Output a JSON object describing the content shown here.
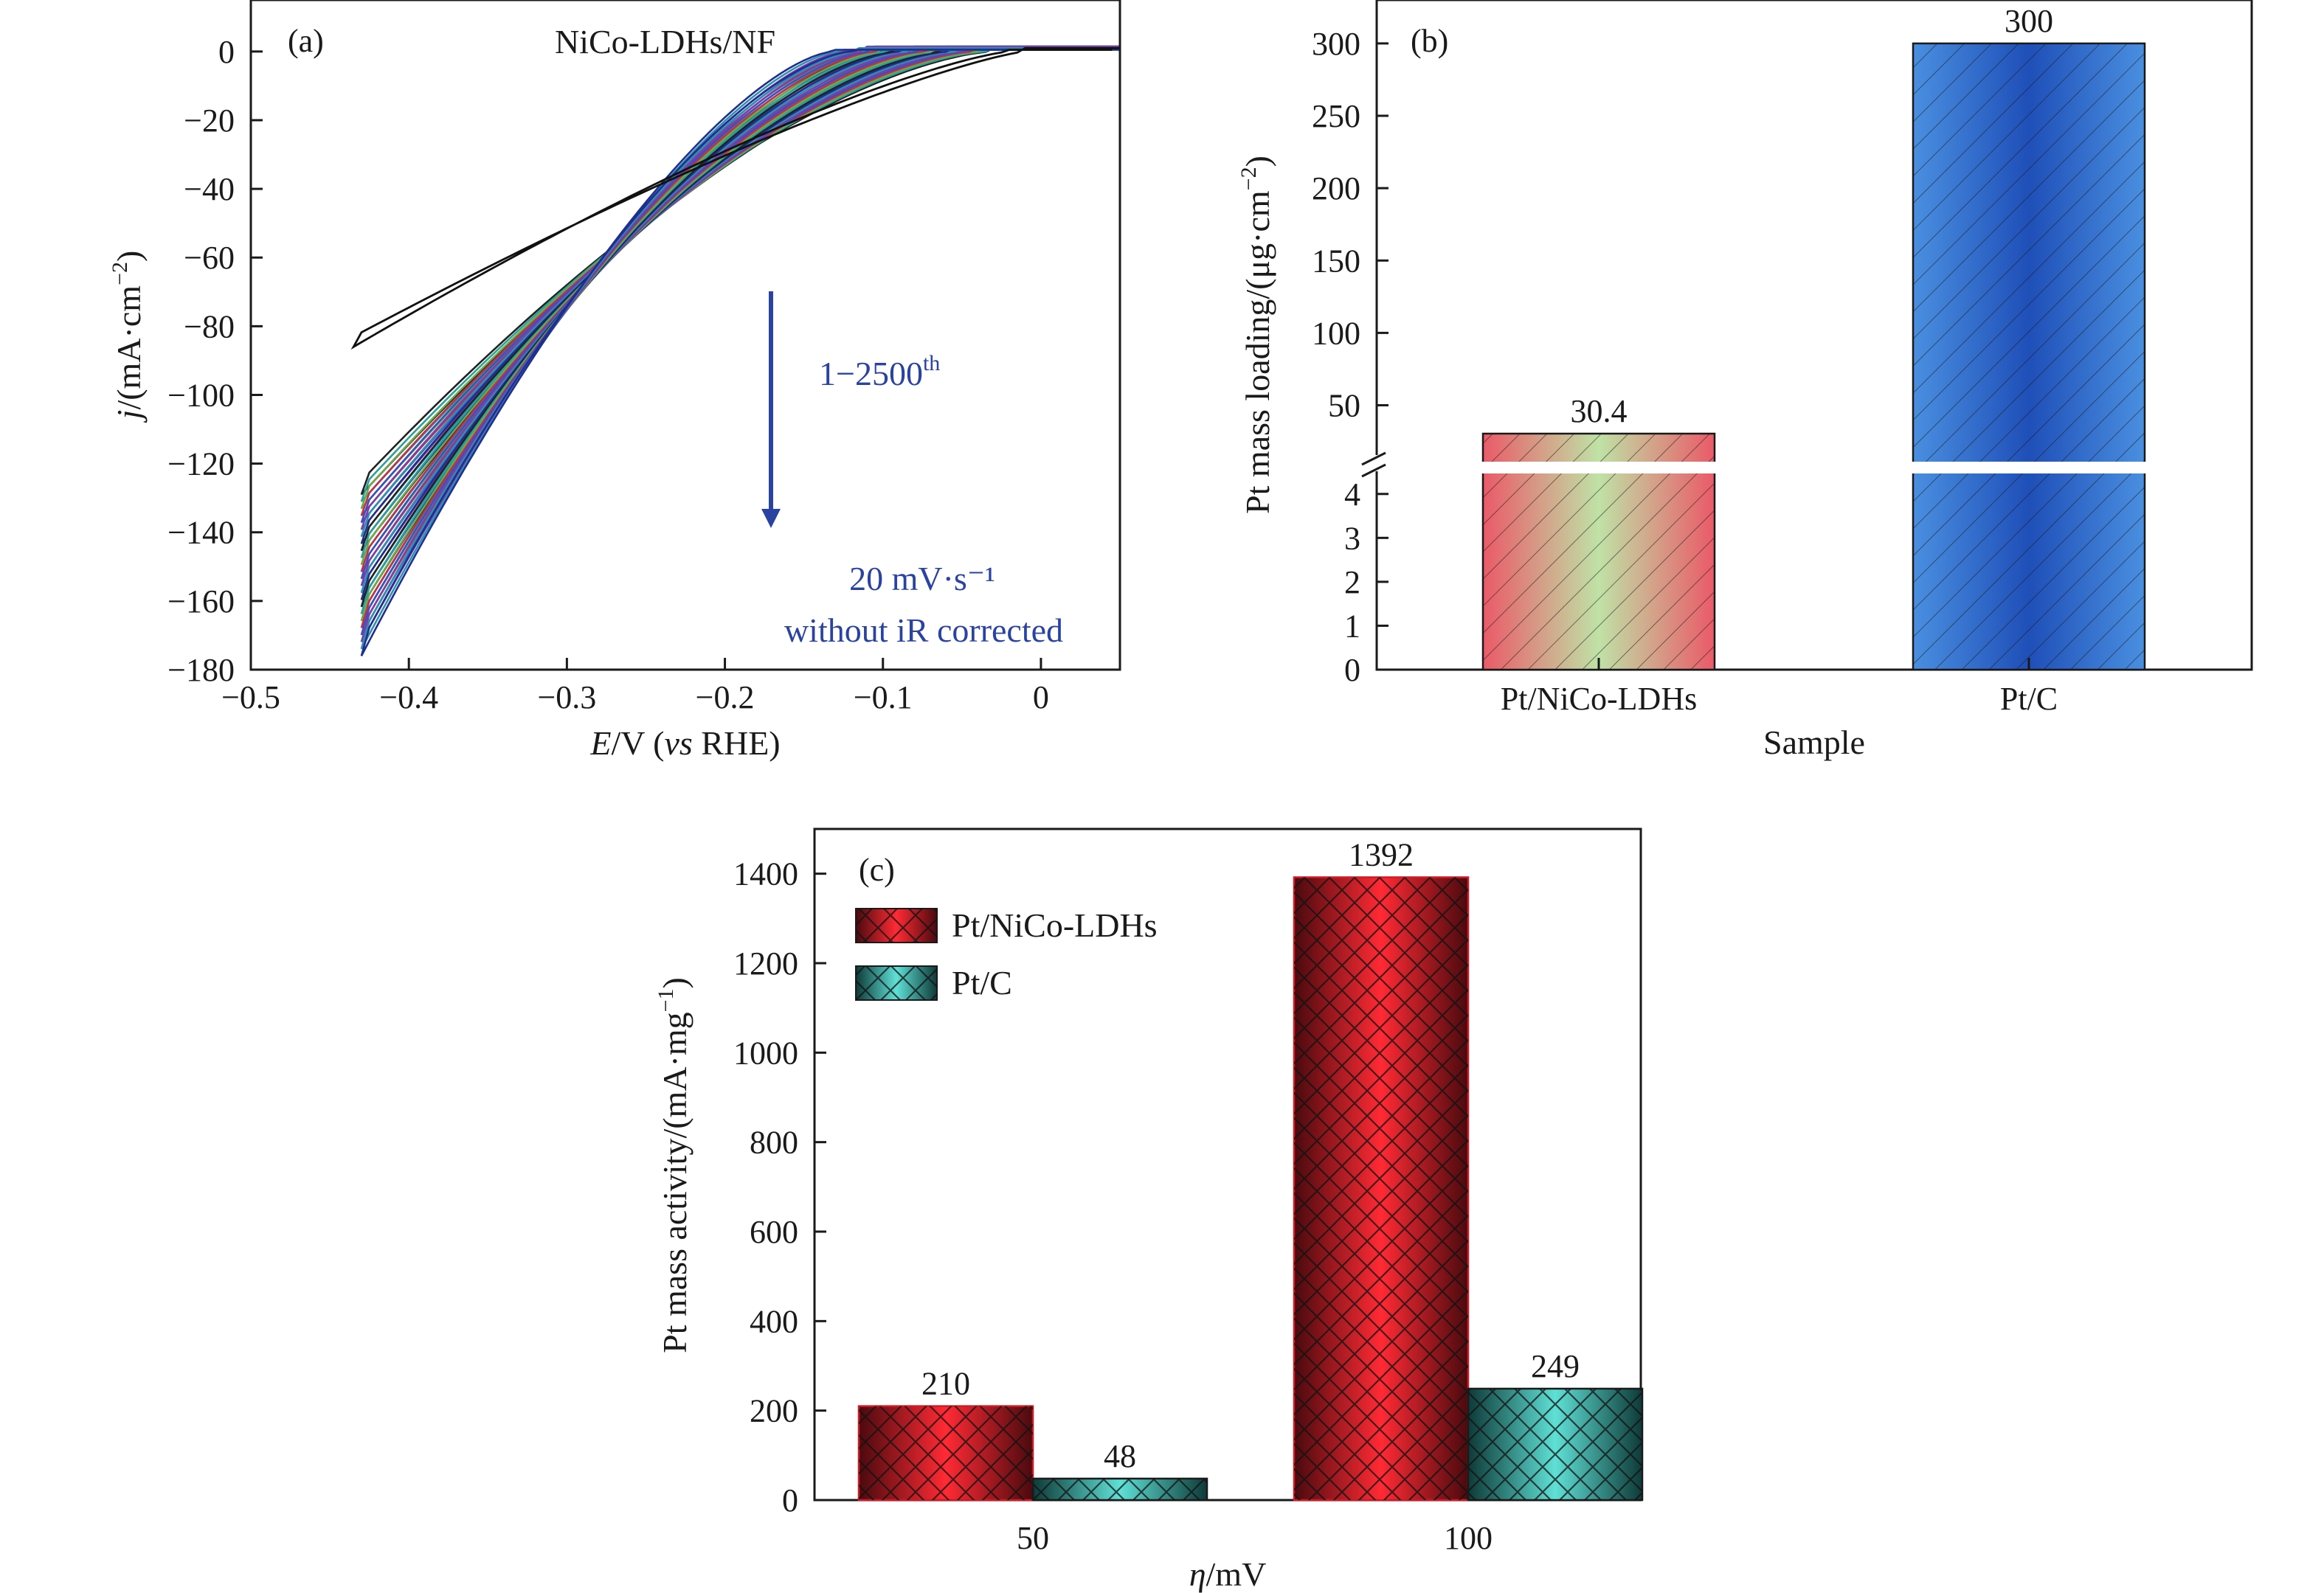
{
  "chart_data": [
    {
      "panel": "(a)",
      "type": "line",
      "title": "NiCo-LDHs/NF",
      "xlabel": "E/V (vs RHE)",
      "ylabel": "j/(mA·cm⁻²)",
      "xlim": [
        -0.5,
        0.05
      ],
      "ylim": [
        -180,
        15
      ],
      "xticks": [
        "−0.5",
        "−0.4",
        "−0.3",
        "−0.2",
        "−0.1",
        "0"
      ],
      "yticks": [
        "0",
        "−20",
        "−40",
        "−60",
        "−80",
        "−100",
        "−120",
        "−140",
        "−160",
        "−180"
      ],
      "annotations": {
        "cycles": "1−2500",
        "cycles_sup": "th",
        "scan_rate": "20 mV·s⁻¹",
        "note": "without iR corrected"
      },
      "series_style": {
        "colors": [
          "#222222",
          "#2ba09a",
          "#6fa84a",
          "#c0304a",
          "#3a4fc0",
          "#7a3fa8",
          "#2f8fb0",
          "#1f2f8f"
        ],
        "count": 24
      },
      "curve_params": {
        "onset_V": [
          -0.03,
          -0.12
        ],
        "current_at_-0.43V": [
          -125,
          -172
        ]
      }
    },
    {
      "panel": "(b)",
      "type": "bar",
      "xlabel": "Sample",
      "ylabel": "Pt mass loading/(μg·cm⁻²)",
      "categories": [
        "Pt/NiCo-LDHs",
        "Pt/C"
      ],
      "values": [
        30.4,
        300
      ],
      "value_labels": [
        "30.4",
        "300"
      ],
      "axis_break": true,
      "lower_range": [
        0,
        4.5
      ],
      "upper_range": [
        10,
        330
      ],
      "lower_yticks": [
        "0",
        "1",
        "2",
        "3",
        "4"
      ],
      "upper_yticks": [
        "50",
        "100",
        "150",
        "200",
        "250",
        "300"
      ],
      "colors": [
        "#ea6a72",
        "#2e6fcc"
      ]
    },
    {
      "panel": "(c)",
      "type": "bar",
      "xlabel": "η/mV",
      "ylabel": "Pt mass activity/(mA·mg⁻¹)",
      "categories": [
        "50",
        "100"
      ],
      "ylim": [
        0,
        1500
      ],
      "yticks": [
        "0",
        "200",
        "400",
        "600",
        "800",
        "1000",
        "1200",
        "1400"
      ],
      "series": [
        {
          "name": "Pt/NiCo-LDHs",
          "values": [
            210,
            1392
          ],
          "labels": [
            "210",
            "1392"
          ],
          "color": "#e0202a"
        },
        {
          "name": "Pt/C",
          "values": [
            48,
            249
          ],
          "labels": [
            "48",
            "249"
          ],
          "color": "#3bbcb4"
        }
      ],
      "legend": "top-left"
    }
  ]
}
